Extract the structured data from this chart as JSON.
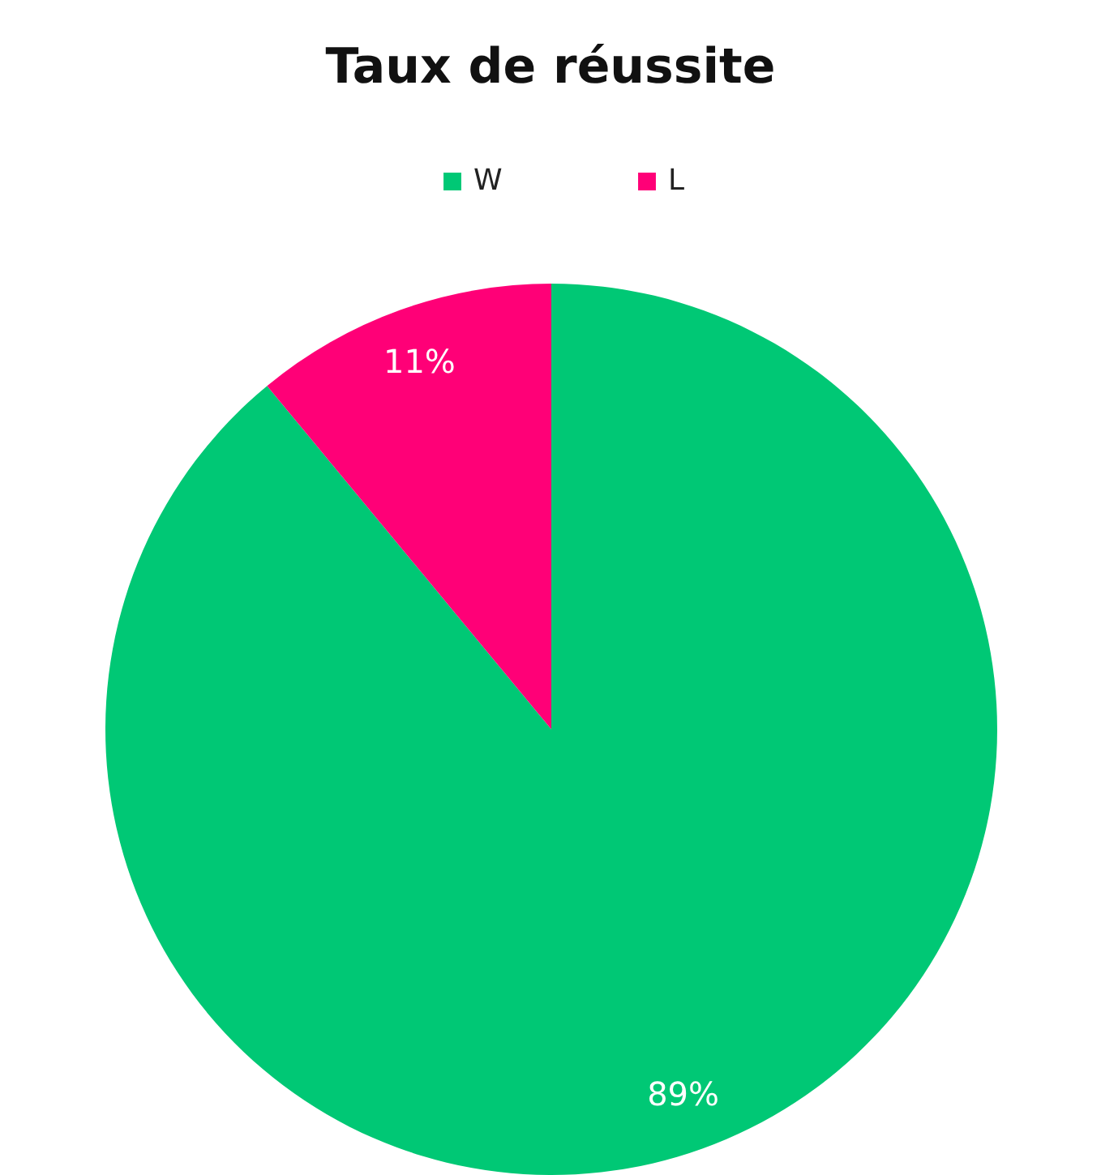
{
  "chart_data": {
    "type": "pie",
    "title": "Taux de réussite",
    "categories": [
      "W",
      "L"
    ],
    "values": [
      89,
      11
    ],
    "colors": [
      "#00c875",
      "#ff0077"
    ],
    "value_labels": [
      "89%",
      "11%"
    ],
    "legend": "top"
  }
}
